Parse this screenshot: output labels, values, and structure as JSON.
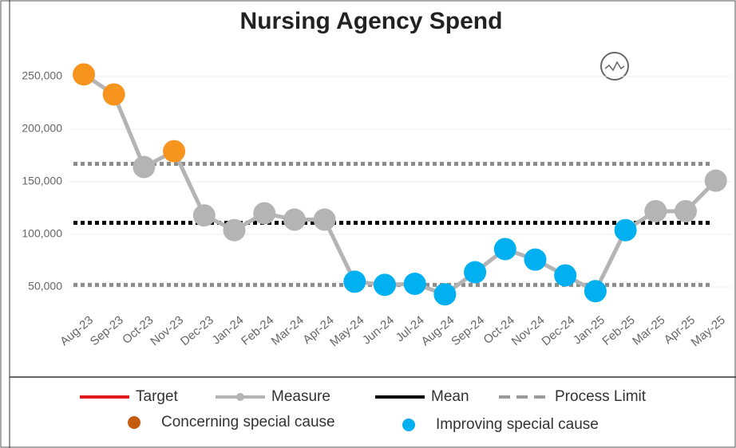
{
  "chart_data": {
    "type": "spc",
    "title": "Nursing Agency Spend",
    "categories": [
      "Aug-23",
      "Sep-23",
      "Oct-23",
      "Nov-23",
      "Dec-23",
      "Jan-24",
      "Feb-24",
      "Mar-24",
      "Apr-24",
      "May-24",
      "Jun-24",
      "Jul-24",
      "Aug-24",
      "Sep-24",
      "Oct-24",
      "Nov-24",
      "Dec-24",
      "Jan-25",
      "Feb-25",
      "Mar-25",
      "Apr-25",
      "May-25"
    ],
    "series": [
      {
        "name": "Measure",
        "color": "#b4b4b4",
        "values": [
          252000,
          233000,
          164000,
          179000,
          118000,
          104000,
          120000,
          114000,
          114000,
          55000,
          52000,
          53000,
          43000,
          64000,
          86000,
          76000,
          61000,
          46000,
          104000,
          122000,
          122000,
          151000
        ],
        "point_colors": [
          "#f7941d",
          "#f7941d",
          "#b4b4b4",
          "#f7941d",
          "#b4b4b4",
          "#b4b4b4",
          "#b4b4b4",
          "#b4b4b4",
          "#b4b4b4",
          "#00b0f0",
          "#00b0f0",
          "#00b0f0",
          "#00b0f0",
          "#00b0f0",
          "#00b0f0",
          "#00b0f0",
          "#00b0f0",
          "#00b0f0",
          "#00b0f0",
          "#b4b4b4",
          "#b4b4b4",
          "#b4b4b4"
        ]
      }
    ],
    "mean": 111000,
    "process_limits": [
      167000,
      52000
    ],
    "ylim": [
      30000,
      275000
    ],
    "yticks": [
      {
        "value": 50000,
        "label": "50,000"
      },
      {
        "value": 100000,
        "label": "100,000"
      },
      {
        "value": 150000,
        "label": "150,000"
      },
      {
        "value": 200000,
        "label": "200,000"
      },
      {
        "value": 250000,
        "label": "250,000"
      }
    ],
    "grid": true,
    "legend": [
      {
        "name": "Target",
        "color": "#e31a1c",
        "style": "line"
      },
      {
        "name": "Measure",
        "color": "#b4b4b4",
        "style": "line-marker"
      },
      {
        "name": "Mean",
        "color": "#000000",
        "style": "line"
      },
      {
        "name": "Process Limit",
        "color": "#9a9a9a",
        "style": "dash"
      },
      {
        "name": "Concerning special cause",
        "color": "#c55a11",
        "style": "dot"
      },
      {
        "name": "Improving special cause",
        "color": "#00b0f0",
        "style": "dot"
      }
    ]
  }
}
